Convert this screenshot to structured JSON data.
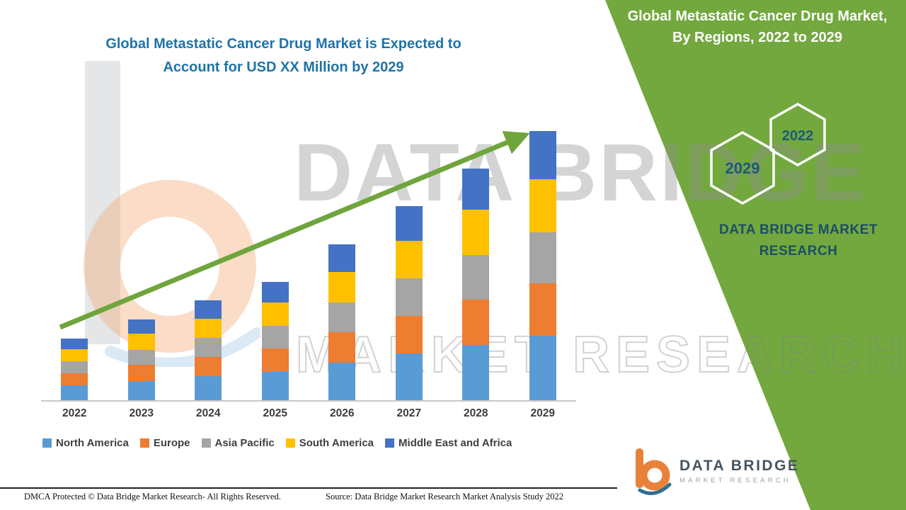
{
  "banner": {
    "title": "Global Metastatic Cancer Drug Market, By Regions, 2022 to 2029",
    "hexagon_left": "2029",
    "hexagon_right": "2022",
    "brand_line1": "DATA BRIDGE MARKET",
    "brand_line2": "RESEARCH",
    "green": "#72A83E"
  },
  "watermark": {
    "line1": "DATA BRIDGE",
    "line2": "MARKET RESEARCH"
  },
  "chart_data": {
    "type": "bar",
    "stacked": true,
    "title": "Global Metastatic Cancer Drug Market is Expected to Account for USD XX Million by 2029",
    "categories": [
      "2022",
      "2023",
      "2024",
      "2025",
      "2026",
      "2027",
      "2028",
      "2029"
    ],
    "series": [
      {
        "name": "North America",
        "color": "#5B9BD5",
        "values": [
          5.5,
          7.2,
          8.9,
          10.6,
          13.9,
          17.3,
          20.6,
          24
        ]
      },
      {
        "name": "Europe",
        "color": "#ED7D31",
        "values": [
          4.5,
          5.9,
          7.2,
          8.6,
          11.3,
          14.1,
          16.8,
          19.5
        ]
      },
      {
        "name": "Asia Pacific",
        "color": "#A5A5A5",
        "values": [
          4.4,
          5.7,
          7.1,
          8.4,
          11.1,
          13.8,
          16.5,
          19
        ]
      },
      {
        "name": "South America",
        "color": "#FFC000",
        "values": [
          4.5,
          5.9,
          7.2,
          8.6,
          11.3,
          14.1,
          16.8,
          19.5
        ]
      },
      {
        "name": "Middle East and Africa",
        "color": "#4472C4",
        "values": [
          4.1,
          5.3,
          6.6,
          7.8,
          10.4,
          12.7,
          15.3,
          18
        ]
      }
    ],
    "xlabel": "",
    "ylabel": "",
    "ylim": [
      0,
      105
    ],
    "grid": false,
    "y_axis_visible": false,
    "note": "No y-axis or data labels shown; stacked segment values are relative estimates from bar heights",
    "legend_position": "bottom",
    "trend_arrow": true,
    "trend_arrow_color": "#6FA53C"
  },
  "footer": {
    "dmca": "DMCA Protected © Data Bridge Market Research- All Rights Reserved.",
    "source": "Source: Data Bridge Market Research Market Analysis Study 2022"
  },
  "logo": {
    "name": "DATA BRIDGE",
    "tagline": "MARKET RESEARCH"
  }
}
